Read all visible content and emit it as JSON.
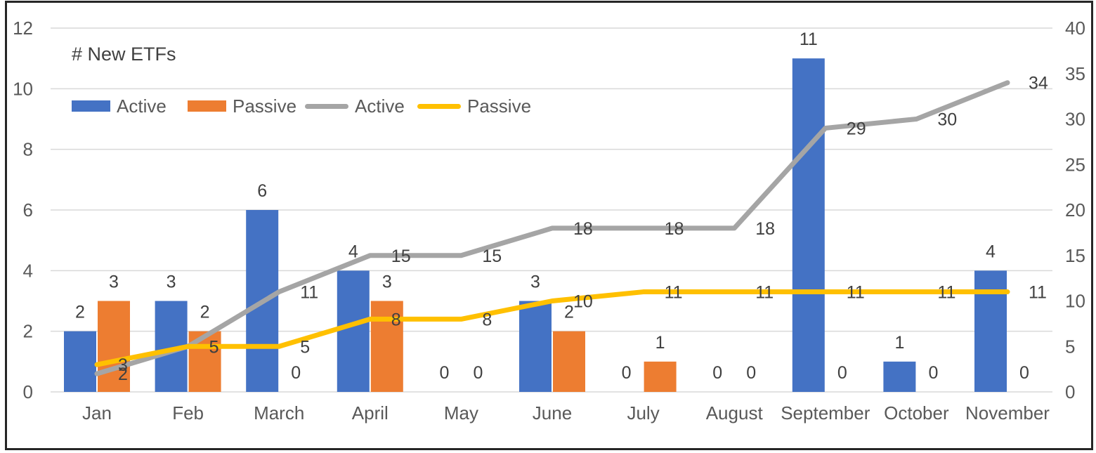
{
  "title": "# New ETFs",
  "legend": {
    "position": "top-left",
    "items": [
      {
        "label": "Active",
        "type": "bar",
        "color": "#4472C4"
      },
      {
        "label": "Passive",
        "type": "bar",
        "color": "#ED7D31"
      },
      {
        "label": "Active",
        "type": "line",
        "color": "#A5A5A5"
      },
      {
        "label": "Passive",
        "type": "line",
        "color": "#FFC000"
      }
    ]
  },
  "chart_data": {
    "type": "combo-bar-line",
    "title": "# New ETFs",
    "categories": [
      "Jan",
      "Feb",
      "March",
      "April",
      "May",
      "June",
      "July",
      "August",
      "September",
      "October",
      "November"
    ],
    "bar_series": [
      {
        "name": "Active",
        "axis": "left",
        "color": "#4472C4",
        "values": [
          2,
          3,
          6,
          4,
          0,
          3,
          0,
          0,
          11,
          1,
          4
        ]
      },
      {
        "name": "Passive",
        "axis": "left",
        "color": "#ED7D31",
        "values": [
          3,
          2,
          0,
          3,
          0,
          2,
          1,
          0,
          0,
          0,
          0
        ]
      }
    ],
    "line_series": [
      {
        "name": "Active",
        "axis": "right",
        "color": "#A5A5A5",
        "values": [
          2,
          5,
          11,
          15,
          15,
          18,
          18,
          18,
          29,
          30,
          34
        ]
      },
      {
        "name": "Passive",
        "axis": "right",
        "color": "#FFC000",
        "values": [
          3,
          5,
          5,
          8,
          8,
          10,
          11,
          11,
          11,
          11,
          11
        ]
      }
    ],
    "left_axis": {
      "min": 0,
      "max": 12,
      "ticks": [
        0,
        2,
        4,
        6,
        8,
        10,
        12
      ]
    },
    "right_axis": {
      "min": 0,
      "max": 40,
      "ticks": [
        0,
        5,
        10,
        15,
        20,
        25,
        30,
        35,
        40
      ]
    },
    "grid": "horizontal gridlines at left-axis ticks",
    "data_labels": true,
    "colors": {
      "grid": "#D9D9D9",
      "axis_text": "#595959",
      "data_label_text": "#404040",
      "frame_border": "#262626"
    }
  }
}
